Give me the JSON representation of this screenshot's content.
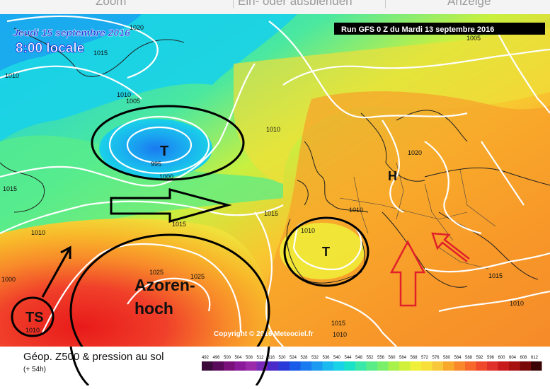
{
  "toolbar": {
    "items": [
      "Zoom",
      "Ein- oder ausblenden",
      "Anzeige"
    ]
  },
  "map": {
    "date_title": "Jeudi 15 septembre 2016",
    "time_title": "8:00 locale",
    "run_title": "Run GFS 0 Z du Mardi 13 septembre 2016",
    "copyright": "Copyright © 2016 Meteociel.fr",
    "legend_title": "Géop. Z500 & pression au sol",
    "legend_sub": "(+ 54h)",
    "legend_values": [
      "492",
      "496",
      "500",
      "504",
      "508",
      "512",
      "516",
      "520",
      "524",
      "528",
      "532",
      "536",
      "540",
      "544",
      "548",
      "552",
      "556",
      "560",
      "564",
      "568",
      "572",
      "576",
      "580",
      "584",
      "588",
      "592",
      "596",
      "600",
      "604",
      "608",
      "612"
    ],
    "legend_colors": [
      "#3a0a3a",
      "#5a0a5a",
      "#7a107a",
      "#8a1a9a",
      "#9a2aaa",
      "#7a2ab8",
      "#4a2ac8",
      "#2a3ad8",
      "#1a5ae8",
      "#1a7af0",
      "#1a9af0",
      "#1abaf0",
      "#1ad2e8",
      "#1ae2c8",
      "#3ae8a8",
      "#5aec88",
      "#7af06a",
      "#a8f04a",
      "#d0f03a",
      "#f0f03a",
      "#f8e03a",
      "#f8c83a",
      "#f8a82a",
      "#f8882a",
      "#f8682a",
      "#f0482a",
      "#e0302a",
      "#c81a1a",
      "#a81010",
      "#780808",
      "#3a0404"
    ],
    "isobar_labels": [
      "1020",
      "1015",
      "1010",
      "1005",
      "1010",
      "995",
      "1000",
      "1010",
      "1020",
      "1015",
      "1015",
      "1010",
      "1010",
      "1010",
      "1015",
      "1025",
      "1025",
      "1010",
      "1010",
      "1015",
      "1010",
      "1005",
      "1000",
      "1015"
    ],
    "highs_lows": [
      "T",
      "H",
      "T"
    ]
  },
  "annotations": {
    "low_label": "TS",
    "azoren_line1": "Azoren-",
    "azoren_line2": "hoch"
  }
}
